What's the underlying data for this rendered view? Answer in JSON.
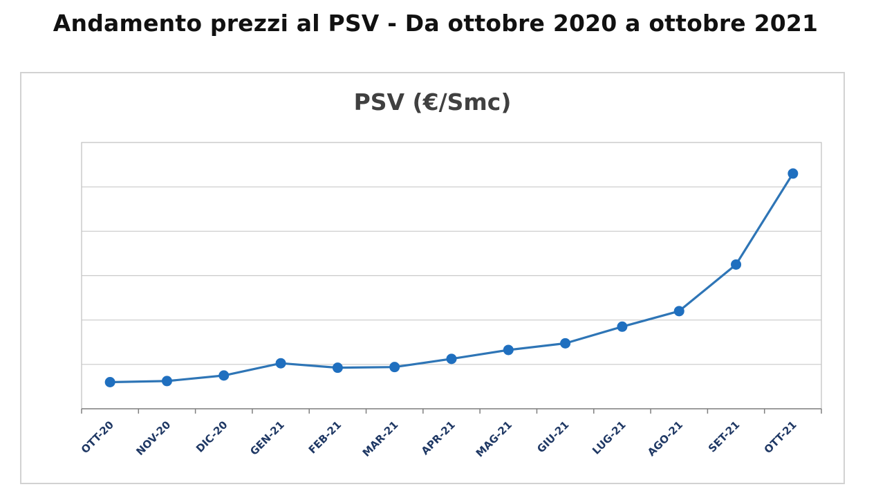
{
  "page": {
    "title": "Andamento prezzi al PSV - Da ottobre 2020 a ottobre 2021"
  },
  "colors": {
    "series": "#2e75b6",
    "marker": "#1f6fbf",
    "grid": "#c8c8c8",
    "axis": "#7f7f7f",
    "tick_text": "#1f3864"
  },
  "chart_data": {
    "type": "line",
    "title": "PSV (€/Smc)",
    "xlabel": "",
    "ylabel": "",
    "categories": [
      "OTT-20",
      "NOV-20",
      "DIC-20",
      "GEN-21",
      "FEB-21",
      "MAR-21",
      "APR-21",
      "MAG-21",
      "GIU-21",
      "LUG-21",
      "AGO-21",
      "SET-21",
      "OTT-21"
    ],
    "series": [
      {
        "values": [
          0.12,
          0.125,
          0.15,
          0.205,
          0.185,
          0.188,
          0.225,
          0.265,
          0.295,
          0.37,
          0.44,
          0.65,
          1.06
        ]
      }
    ],
    "ylim": [
      0,
      1.2
    ],
    "y_gridlines": [
      0.2,
      0.4,
      0.6,
      0.8,
      1.0
    ],
    "y_tick_labels_shown": false,
    "grid": true,
    "legend": "none"
  }
}
